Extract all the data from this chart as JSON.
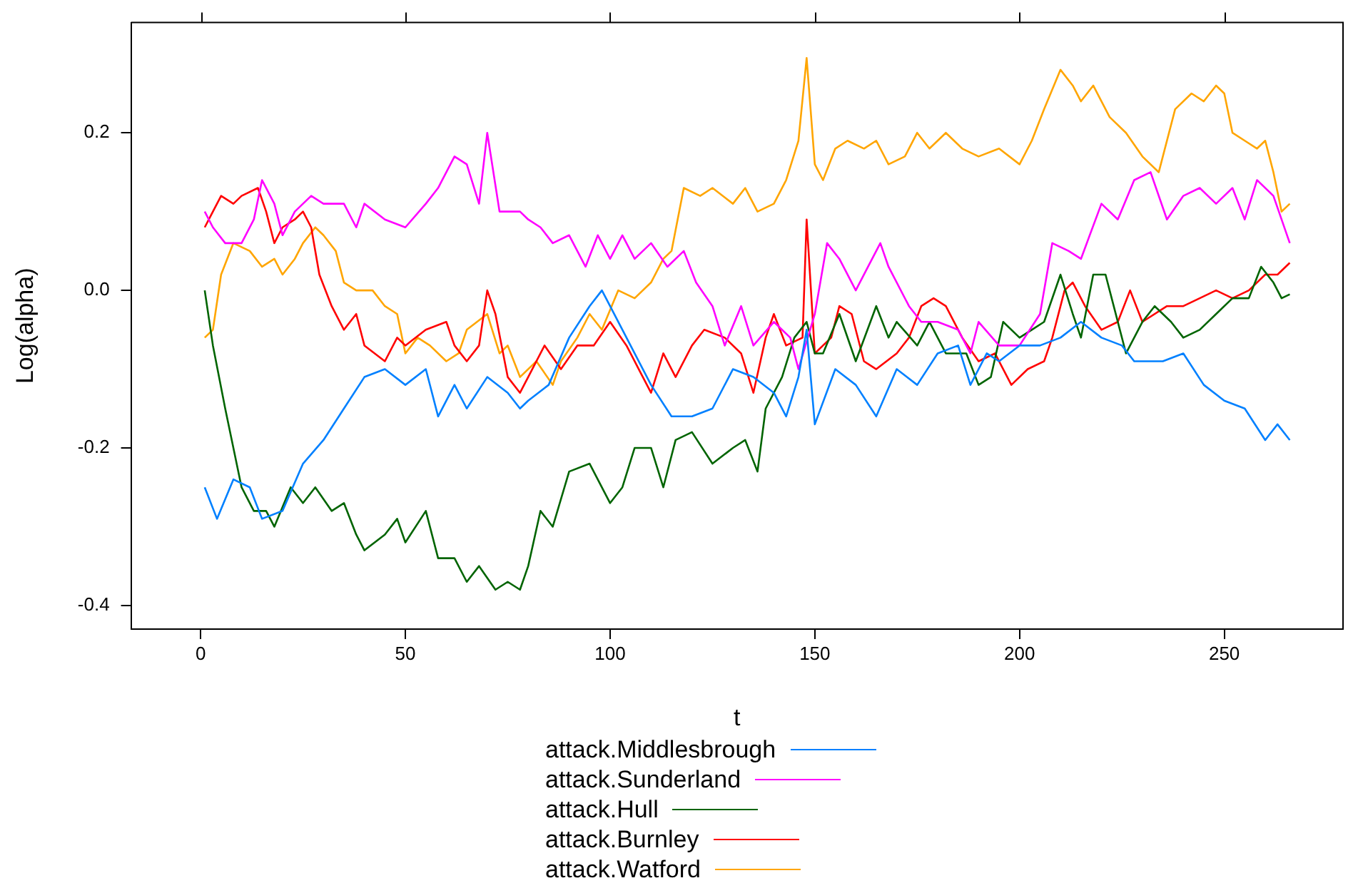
{
  "chart_data": {
    "type": "line",
    "xlabel": "t",
    "ylabel": "Log(alpha)",
    "xlim": [
      -17,
      279
    ],
    "xticks": [
      0,
      50,
      100,
      150,
      200,
      250
    ],
    "ylim": [
      -0.43,
      0.34
    ],
    "yticks": [
      -0.4,
      -0.2,
      {
        "value": 0,
        "label": "0.0"
      },
      0.2
    ],
    "legend": "bottom",
    "marker": "none",
    "line_style": "solid",
    "series": [
      {
        "name": "attack.Middlesbrough",
        "color": "#0080ff",
        "x": [
          1,
          4,
          8,
          12,
          15,
          20,
          25,
          30,
          35,
          40,
          45,
          50,
          55,
          58,
          62,
          65,
          70,
          75,
          78,
          80,
          85,
          90,
          95,
          98,
          100,
          105,
          110,
          115,
          120,
          125,
          130,
          135,
          140,
          143,
          146,
          148,
          150,
          155,
          160,
          165,
          170,
          175,
          180,
          185,
          188,
          192,
          195,
          200,
          205,
          210,
          215,
          220,
          225,
          228,
          235,
          240,
          245,
          250,
          255,
          260,
          263,
          266
        ],
        "values": [
          -0.25,
          -0.29,
          -0.24,
          -0.25,
          -0.29,
          -0.28,
          -0.22,
          -0.19,
          -0.15,
          -0.11,
          -0.1,
          -0.12,
          -0.1,
          -0.16,
          -0.12,
          -0.15,
          -0.11,
          -0.13,
          -0.15,
          -0.14,
          -0.12,
          -0.06,
          -0.02,
          0.0,
          -0.02,
          -0.07,
          -0.12,
          -0.16,
          -0.16,
          -0.15,
          -0.1,
          -0.11,
          -0.13,
          -0.16,
          -0.11,
          -0.05,
          -0.17,
          -0.1,
          -0.12,
          -0.16,
          -0.1,
          -0.12,
          -0.08,
          -0.07,
          -0.12,
          -0.08,
          -0.09,
          -0.07,
          -0.07,
          -0.06,
          -0.04,
          -0.06,
          -0.07,
          -0.09,
          -0.09,
          -0.08,
          -0.12,
          -0.14,
          -0.15,
          -0.19,
          -0.17,
          -0.19
        ]
      },
      {
        "name": "attack.Sunderland",
        "color": "#ff00ff",
        "x": [
          1,
          3,
          6,
          10,
          13,
          15,
          18,
          20,
          23,
          27,
          30,
          35,
          38,
          40,
          45,
          50,
          55,
          58,
          62,
          65,
          68,
          70,
          73,
          78,
          80,
          83,
          86,
          90,
          94,
          97,
          100,
          103,
          106,
          110,
          114,
          118,
          121,
          125,
          128,
          132,
          135,
          140,
          144,
          146,
          150,
          153,
          156,
          160,
          163,
          166,
          168,
          173,
          176,
          180,
          185,
          188,
          190,
          195,
          200,
          205,
          208,
          212,
          215,
          220,
          224,
          228,
          232,
          236,
          240,
          244,
          248,
          252,
          255,
          258,
          262,
          266
        ],
        "values": [
          0.1,
          0.08,
          0.06,
          0.06,
          0.09,
          0.14,
          0.11,
          0.07,
          0.1,
          0.12,
          0.11,
          0.11,
          0.08,
          0.11,
          0.09,
          0.08,
          0.11,
          0.13,
          0.17,
          0.16,
          0.11,
          0.2,
          0.1,
          0.1,
          0.09,
          0.08,
          0.06,
          0.07,
          0.03,
          0.07,
          0.04,
          0.07,
          0.04,
          0.06,
          0.03,
          0.05,
          0.01,
          -0.02,
          -0.07,
          -0.02,
          -0.07,
          -0.04,
          -0.06,
          -0.1,
          -0.03,
          0.06,
          0.04,
          0.0,
          0.03,
          0.06,
          0.03,
          -0.02,
          -0.04,
          -0.04,
          -0.05,
          -0.08,
          -0.04,
          -0.07,
          -0.07,
          -0.03,
          0.06,
          0.05,
          0.04,
          0.11,
          0.09,
          0.14,
          0.15,
          0.09,
          0.12,
          0.13,
          0.11,
          0.13,
          0.09,
          0.14,
          0.12,
          0.06
        ]
      },
      {
        "name": "attack.Hull",
        "color": "#006400",
        "x": [
          1,
          3,
          6,
          10,
          13,
          16,
          18,
          22,
          25,
          28,
          32,
          35,
          38,
          40,
          45,
          48,
          50,
          55,
          58,
          62,
          65,
          68,
          72,
          75,
          78,
          80,
          83,
          86,
          90,
          95,
          100,
          103,
          106,
          110,
          113,
          116,
          120,
          125,
          130,
          133,
          136,
          138,
          142,
          145,
          148,
          150,
          152,
          156,
          160,
          165,
          168,
          170,
          175,
          178,
          182,
          187,
          190,
          193,
          196,
          200,
          203,
          206,
          210,
          213,
          215,
          218,
          221,
          223,
          226,
          230,
          233,
          237,
          240,
          244,
          248,
          252,
          256,
          259,
          262,
          264,
          266
        ],
        "values": [
          0.0,
          -0.07,
          -0.15,
          -0.25,
          -0.28,
          -0.28,
          -0.3,
          -0.25,
          -0.27,
          -0.25,
          -0.28,
          -0.27,
          -0.31,
          -0.33,
          -0.31,
          -0.29,
          -0.32,
          -0.28,
          -0.34,
          -0.34,
          -0.37,
          -0.35,
          -0.38,
          -0.37,
          -0.38,
          -0.35,
          -0.28,
          -0.3,
          -0.23,
          -0.22,
          -0.27,
          -0.25,
          -0.2,
          -0.2,
          -0.25,
          -0.19,
          -0.18,
          -0.22,
          -0.2,
          -0.19,
          -0.23,
          -0.15,
          -0.11,
          -0.06,
          -0.04,
          -0.08,
          -0.08,
          -0.03,
          -0.09,
          -0.02,
          -0.06,
          -0.04,
          -0.07,
          -0.04,
          -0.08,
          -0.08,
          -0.12,
          -0.11,
          -0.04,
          -0.06,
          -0.05,
          -0.04,
          0.02,
          -0.03,
          -0.06,
          0.02,
          0.02,
          -0.02,
          -0.08,
          -0.04,
          -0.02,
          -0.04,
          -0.06,
          -0.05,
          -0.03,
          -0.01,
          -0.01,
          0.03,
          0.01,
          -0.01,
          -0.005
        ]
      },
      {
        "name": "attack.Burnley",
        "color": "#ff0000",
        "x": [
          1,
          3,
          5,
          8,
          10,
          14,
          16,
          18,
          20,
          23,
          25,
          27,
          29,
          32,
          35,
          38,
          40,
          45,
          48,
          50,
          55,
          60,
          62,
          65,
          68,
          70,
          72,
          75,
          78,
          80,
          84,
          88,
          92,
          96,
          100,
          104,
          107,
          110,
          113,
          116,
          120,
          123,
          128,
          132,
          135,
          138,
          140,
          143,
          147,
          148,
          150,
          152,
          154,
          156,
          159,
          162,
          165,
          170,
          173,
          176,
          179,
          182,
          186,
          190,
          194,
          198,
          202,
          206,
          208,
          211,
          213,
          216,
          220,
          224,
          227,
          230,
          236,
          240,
          244,
          248,
          252,
          256,
          260,
          263,
          266
        ],
        "values": [
          0.08,
          0.1,
          0.12,
          0.11,
          0.12,
          0.13,
          0.1,
          0.06,
          0.08,
          0.09,
          0.1,
          0.08,
          0.02,
          -0.02,
          -0.05,
          -0.03,
          -0.07,
          -0.09,
          -0.06,
          -0.07,
          -0.05,
          -0.04,
          -0.07,
          -0.09,
          -0.07,
          0.0,
          -0.03,
          -0.11,
          -0.13,
          -0.11,
          -0.07,
          -0.1,
          -0.07,
          -0.07,
          -0.04,
          -0.07,
          -0.1,
          -0.13,
          -0.08,
          -0.11,
          -0.07,
          -0.05,
          -0.06,
          -0.08,
          -0.13,
          -0.06,
          -0.03,
          -0.07,
          -0.06,
          0.09,
          -0.08,
          -0.07,
          -0.06,
          -0.02,
          -0.03,
          -0.09,
          -0.1,
          -0.08,
          -0.06,
          -0.02,
          -0.01,
          -0.02,
          -0.06,
          -0.09,
          -0.08,
          -0.12,
          -0.1,
          -0.09,
          -0.06,
          0.0,
          0.01,
          -0.02,
          -0.05,
          -0.04,
          0.0,
          -0.04,
          -0.02,
          -0.02,
          -0.01,
          0.0,
          -0.01,
          0.0,
          0.02,
          0.02,
          0.035
        ]
      },
      {
        "name": "attack.Watford",
        "color": "#ffa500",
        "x": [
          1,
          3,
          5,
          8,
          12,
          15,
          18,
          20,
          23,
          25,
          28,
          30,
          33,
          35,
          38,
          42,
          45,
          48,
          50,
          53,
          56,
          60,
          63,
          65,
          70,
          73,
          75,
          78,
          82,
          86,
          88,
          92,
          95,
          98,
          102,
          106,
          110,
          113,
          115,
          118,
          122,
          125,
          130,
          133,
          136,
          140,
          143,
          146,
          148,
          150,
          152,
          155,
          158,
          162,
          165,
          168,
          172,
          175,
          178,
          182,
          186,
          190,
          195,
          200,
          203,
          206,
          210,
          213,
          215,
          218,
          222,
          226,
          230,
          234,
          238,
          242,
          245,
          248,
          250,
          252,
          255,
          258,
          260,
          262,
          264,
          266
        ],
        "values": [
          -0.06,
          -0.05,
          0.02,
          0.06,
          0.05,
          0.03,
          0.04,
          0.02,
          0.04,
          0.06,
          0.08,
          0.07,
          0.05,
          0.01,
          0.0,
          0.0,
          -0.02,
          -0.03,
          -0.08,
          -0.06,
          -0.07,
          -0.09,
          -0.08,
          -0.05,
          -0.03,
          -0.08,
          -0.07,
          -0.11,
          -0.09,
          -0.12,
          -0.09,
          -0.06,
          -0.03,
          -0.05,
          0.0,
          -0.01,
          0.01,
          0.04,
          0.05,
          0.13,
          0.12,
          0.13,
          0.11,
          0.13,
          0.1,
          0.11,
          0.14,
          0.19,
          0.295,
          0.16,
          0.14,
          0.18,
          0.19,
          0.18,
          0.19,
          0.16,
          0.17,
          0.2,
          0.18,
          0.2,
          0.18,
          0.17,
          0.18,
          0.16,
          0.19,
          0.23,
          0.28,
          0.26,
          0.24,
          0.26,
          0.22,
          0.2,
          0.17,
          0.15,
          0.23,
          0.25,
          0.24,
          0.26,
          0.25,
          0.2,
          0.19,
          0.18,
          0.19,
          0.15,
          0.1,
          0.11
        ]
      }
    ]
  }
}
